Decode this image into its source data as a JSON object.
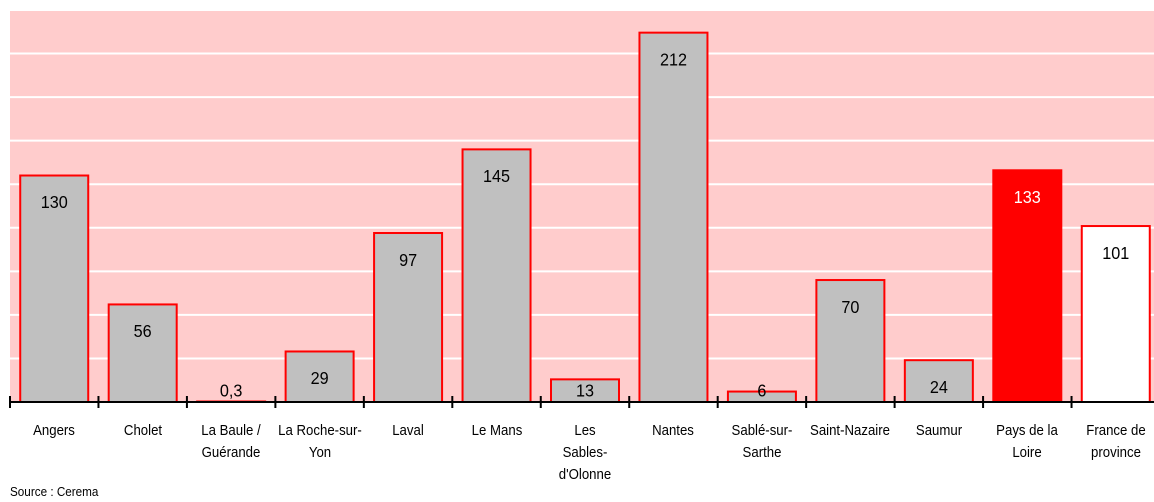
{
  "chart_data": {
    "type": "bar",
    "categories": [
      "Angers",
      "Cholet",
      "La Baule / Guérande",
      "La Roche-sur-Yon",
      "Laval",
      "Le Mans",
      "Les Sables-d'Olonne",
      "Nantes",
      "Sablé-sur-Sarthe",
      "Saint-Nazaire",
      "Saumur",
      "Pays de la Loire",
      "France de province"
    ],
    "values": [
      130,
      56,
      0.3,
      29,
      97,
      145,
      13,
      212,
      6,
      70,
      24,
      133,
      101
    ],
    "value_labels": [
      "130",
      "56",
      "0,3",
      "29",
      "97",
      "145",
      "13",
      "212",
      "6",
      "70",
      "24",
      "133",
      "101"
    ],
    "colors": [
      "#c0c0c0",
      "#c0c0c0",
      "#c0c0c0",
      "#c0c0c0",
      "#c0c0c0",
      "#c0c0c0",
      "#c0c0c0",
      "#c0c0c0",
      "#c0c0c0",
      "#c0c0c0",
      "#c0c0c0",
      "#ff0000",
      "#ffffff"
    ],
    "label_colors": [
      "#000000",
      "#000000",
      "#000000",
      "#000000",
      "#000000",
      "#000000",
      "#000000",
      "#000000",
      "#000000",
      "#000000",
      "#000000",
      "#ffffff",
      "#000000"
    ],
    "edge_color": "#ff0000",
    "background": "#ffcccc",
    "ylim": [
      0,
      225
    ],
    "yticks": [
      25,
      50,
      75,
      100,
      125,
      150,
      175,
      200,
      225
    ],
    "grid": true,
    "source": "Source : Cerema"
  }
}
